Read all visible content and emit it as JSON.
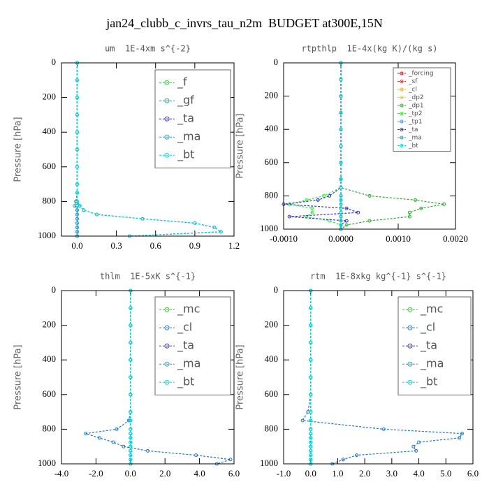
{
  "title": "jan24_clubb_c_invrs_tau_n2m  BUDGET at300E,15N",
  "chart_data": [
    {
      "type": "line",
      "title": "um  1E-4xm s^{-2}",
      "ylabel": "Pressure [hPa]",
      "legend": "upper right",
      "y": [
        0,
        100,
        200,
        300,
        400,
        500,
        600,
        700,
        750,
        800,
        825,
        850,
        875,
        900,
        925,
        950,
        975,
        1000
      ],
      "xlim": [
        -0.12,
        1.2
      ],
      "xticks": [
        {
          "value": 0,
          "label": "0.0"
        },
        0.3,
        0.6,
        0.9,
        1.2
      ],
      "ylim": [
        1000,
        0
      ],
      "yticks": [
        0,
        200,
        400,
        600,
        800,
        1000
      ],
      "series": [
        {
          "name": "_f",
          "color": "#33cc33",
          "values": [
            0,
            0,
            0,
            0,
            0,
            0,
            0,
            0,
            0,
            0,
            0,
            0,
            0,
            0,
            0,
            0,
            0,
            0
          ]
        },
        {
          "name": "_gf",
          "color": "#339999",
          "values": [
            0,
            0,
            0,
            0,
            0,
            0,
            0,
            0,
            0,
            -0.01,
            -0.02,
            0,
            0,
            0,
            0,
            0,
            0,
            0
          ]
        },
        {
          "name": "_ta",
          "color": "#3333cc",
          "values": [
            0,
            0,
            0,
            0,
            0,
            0,
            0,
            0,
            0,
            0,
            0.02,
            0.05,
            0.15,
            0.5,
            0.9,
            1.05,
            1.1,
            0.4
          ]
        },
        {
          "name": "_ma",
          "color": "#3399cc",
          "values": [
            0,
            0,
            0,
            0,
            0,
            0,
            0,
            0,
            0,
            0,
            0,
            0,
            0,
            0,
            0,
            0,
            0,
            0
          ]
        },
        {
          "name": "_bt",
          "color": "#00dddd",
          "values": [
            0,
            0,
            0,
            0,
            0,
            0,
            0,
            0,
            0,
            0,
            0.02,
            0.05,
            0.15,
            0.5,
            0.9,
            1.05,
            1.1,
            0.4
          ]
        }
      ]
    },
    {
      "type": "line",
      "title": "rtpthlp  1E-4x(kg K)/(kg s)",
      "ylabel": "Pressure [hPa]",
      "legend": "upper right",
      "y": [
        0,
        100,
        200,
        300,
        400,
        500,
        600,
        700,
        750,
        800,
        825,
        850,
        875,
        900,
        925,
        950,
        975,
        1000
      ],
      "xlim": [
        -0.001,
        0.002
      ],
      "xticks": [
        {
          "value": -0.001,
          "label": "-0.0010"
        },
        {
          "value": 0,
          "label": "0.0000"
        },
        {
          "value": 0.001,
          "label": "0.0010"
        },
        {
          "value": 0.002,
          "label": "0.0020"
        }
      ],
      "ylim": [
        1000,
        0
      ],
      "yticks": [
        0,
        200,
        400,
        600,
        800,
        1000
      ],
      "series": [
        {
          "name": "_forcing",
          "color": "#ff0000",
          "values": [
            0,
            0,
            0,
            0,
            0,
            0,
            0,
            0,
            0,
            0,
            0,
            0,
            0,
            0,
            0,
            0,
            0,
            0
          ]
        },
        {
          "name": "_sf",
          "color": "#dd3333",
          "values": [
            0,
            0,
            0,
            0,
            0,
            0,
            0,
            0,
            0,
            0,
            0,
            0,
            0,
            0,
            0,
            0,
            0,
            0
          ]
        },
        {
          "name": "_cl",
          "color": "#ffaa00",
          "values": [
            0,
            0,
            0,
            0,
            0,
            0,
            0,
            0,
            0,
            0,
            0,
            0,
            0,
            0,
            0,
            0,
            0,
            0
          ]
        },
        {
          "name": "_dp2",
          "color": "#ffcc00",
          "values": [
            0,
            0,
            0,
            0,
            0,
            0,
            0,
            0,
            0,
            0,
            0,
            0,
            0,
            0,
            0,
            0,
            0,
            0
          ]
        },
        {
          "name": "_dp1",
          "color": "#33aa33",
          "values": [
            0,
            0,
            0,
            0,
            0,
            0,
            0,
            0,
            0,
            0.0005,
            0.0013,
            0.0018,
            0.0014,
            0.0012,
            0.0012,
            0.0005,
            0.0001,
            0
          ]
        },
        {
          "name": "_tp2",
          "color": "#33ee33",
          "values": [
            0,
            0,
            0,
            0,
            0,
            0,
            0,
            0,
            0,
            -0.0003,
            -0.0006,
            -0.0009,
            -0.0005,
            -0.0005,
            -0.0006,
            -0.0002,
            0,
            0
          ]
        },
        {
          "name": "_tp1",
          "color": "#3399ff",
          "values": [
            0,
            0,
            0,
            0,
            0,
            0,
            0,
            0,
            0,
            0,
            0,
            0,
            0,
            0,
            0,
            0,
            0,
            0
          ]
        },
        {
          "name": "_ta",
          "color": "#3333cc",
          "values": [
            0,
            0,
            0,
            0,
            0,
            0,
            0,
            0,
            0,
            -0.0002,
            -0.0004,
            -0.001,
            0.0001,
            0.0003,
            -0.0009,
            0.0001,
            0,
            0
          ]
        },
        {
          "name": "_ma",
          "color": "#3399aa",
          "values": [
            0,
            0,
            0,
            0,
            0,
            0,
            0,
            0,
            0,
            0,
            0,
            0,
            0,
            0,
            0,
            0,
            0,
            0
          ]
        },
        {
          "name": "_bt",
          "color": "#00dddd",
          "values": [
            0,
            0,
            0,
            0,
            0,
            0,
            0,
            0,
            0,
            0,
            0,
            0,
            0,
            0,
            0,
            0,
            0,
            0
          ]
        }
      ]
    },
    {
      "type": "line",
      "title": "thlm  1E-5xK s^{-1}",
      "ylabel": "Pressure [hPa]",
      "legend": "upper right",
      "y": [
        0,
        100,
        200,
        300,
        400,
        500,
        600,
        700,
        750,
        800,
        825,
        850,
        875,
        900,
        925,
        950,
        975,
        1000
      ],
      "xlim": [
        -4,
        6
      ],
      "xticks": [
        {
          "value": -4,
          "label": "-4.0"
        },
        {
          "value": -2,
          "label": "-2.0"
        },
        {
          "value": 0,
          "label": "0.0"
        },
        {
          "value": 2,
          "label": "2.0"
        },
        {
          "value": 4,
          "label": "4.0"
        },
        {
          "value": 6,
          "label": "6.0"
        }
      ],
      "ylim": [
        1000,
        0
      ],
      "yticks": [
        0,
        200,
        400,
        600,
        800,
        1000
      ],
      "series": [
        {
          "name": "_mc",
          "color": "#33cc33",
          "values": [
            0,
            0,
            0,
            0,
            0,
            0,
            0,
            0,
            0,
            0,
            0,
            0,
            0,
            0,
            0,
            0,
            0,
            0
          ]
        },
        {
          "name": "_cl",
          "color": "#1f77d4",
          "values": [
            0,
            0,
            0,
            0,
            0,
            0,
            0,
            0,
            -0.1,
            -0.8,
            -2.6,
            -1.8,
            -1.0,
            -0.4,
            1.0,
            3.8,
            5.8,
            5.0
          ]
        },
        {
          "name": "_ta",
          "color": "#3333cc",
          "values": [
            0,
            0,
            0,
            0,
            0,
            0,
            0,
            0,
            0,
            0,
            0,
            0,
            0,
            0,
            0,
            0,
            0,
            0
          ]
        },
        {
          "name": "_ma",
          "color": "#3399cc",
          "values": [
            0,
            0,
            0,
            0,
            0,
            0,
            0,
            0,
            0,
            0,
            0,
            0,
            0,
            0,
            0,
            0,
            0,
            0
          ]
        },
        {
          "name": "_bt",
          "color": "#00dddd",
          "values": [
            0,
            0,
            0,
            0,
            0,
            0,
            0,
            0,
            0,
            0,
            0,
            0,
            0,
            0,
            0,
            0,
            0,
            0
          ]
        }
      ]
    },
    {
      "type": "line",
      "title": "rtm  1E-8xkg kg^{-1} s^{-1}",
      "ylabel": "Pressure [hPa]",
      "legend": "upper right",
      "y": [
        0,
        100,
        200,
        300,
        400,
        500,
        600,
        700,
        750,
        800,
        825,
        850,
        875,
        900,
        925,
        950,
        975,
        1000
      ],
      "xlim": [
        -1,
        6
      ],
      "xticks": [
        {
          "value": -1,
          "label": "-1.0"
        },
        {
          "value": 0,
          "label": "0.0"
        },
        {
          "value": 1,
          "label": "1.0"
        },
        {
          "value": 2,
          "label": "2.0"
        },
        {
          "value": 3,
          "label": "3.0"
        },
        {
          "value": 4,
          "label": "4.0"
        },
        {
          "value": 5,
          "label": "5.0"
        },
        {
          "value": 6,
          "label": "6.0"
        }
      ],
      "ylim": [
        1000,
        0
      ],
      "yticks": [
        0,
        200,
        400,
        600,
        800,
        1000
      ],
      "series": [
        {
          "name": "_mc",
          "color": "#33cc33",
          "values": [
            0,
            0,
            0,
            0,
            0,
            0,
            0,
            0,
            0,
            0,
            0,
            0,
            0,
            0,
            0,
            0,
            0,
            0
          ]
        },
        {
          "name": "_cl",
          "color": "#1f77d4",
          "values": [
            0,
            0,
            0,
            0,
            0,
            0,
            0,
            -0.1,
            -0.3,
            2.7,
            5.6,
            5.5,
            4.0,
            3.8,
            3.9,
            1.7,
            1.2,
            0.8
          ]
        },
        {
          "name": "_ta",
          "color": "#3333cc",
          "values": [
            0,
            0,
            0,
            0,
            0,
            0,
            0,
            0,
            0,
            0,
            0,
            0,
            0,
            0,
            0,
            0,
            0,
            0
          ]
        },
        {
          "name": "_ma",
          "color": "#3399cc",
          "values": [
            0,
            0,
            0,
            0,
            0,
            0,
            0,
            0,
            0,
            0,
            0,
            0,
            0,
            0,
            0,
            0,
            0,
            0
          ]
        },
        {
          "name": "_bt",
          "color": "#00dddd",
          "values": [
            0,
            0,
            0,
            0,
            0,
            0,
            0,
            0,
            0,
            0,
            0,
            0,
            0,
            0,
            0,
            0,
            0,
            0
          ]
        }
      ]
    }
  ]
}
